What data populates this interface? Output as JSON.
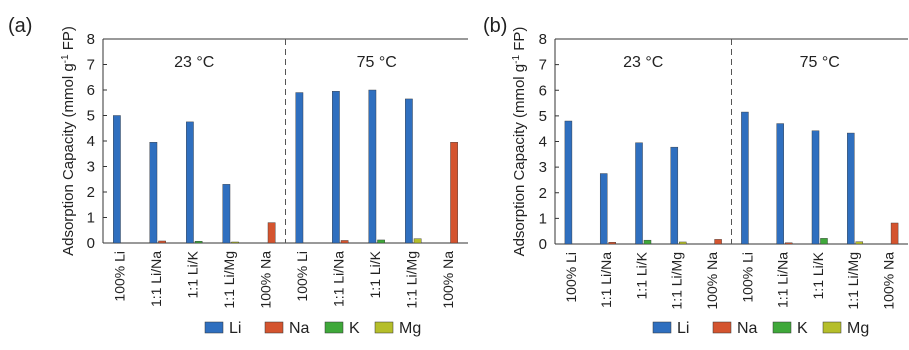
{
  "panel_labels": [
    "(a)",
    "(b)"
  ],
  "ylabel_parts": [
    "Adsorption Capacity (mmol g",
    "-1",
    " FP)"
  ],
  "y_ticks": [
    "0",
    "1",
    "2",
    "3",
    "4",
    "5",
    "6",
    "7",
    "8"
  ],
  "colors": {
    "Li": "#2f6fbf",
    "Na": "#d4542f",
    "K": "#3fa83a",
    "Mg": "#b5be2a",
    "divider": "#555555"
  },
  "chart_data": [
    {
      "type": "bar",
      "panel": "(a)",
      "ylim": [
        0,
        8
      ],
      "group_titles": [
        "23 °C",
        "75 °C"
      ],
      "categories": [
        "100% Li",
        "1:1 Li/Na",
        "1:1 Li/K",
        "1:1 Li/Mg",
        "100% Na",
        "100% Li",
        "1:1 Li/Na",
        "1:1 Li/K",
        "1:1 Li/Mg",
        "100% Na"
      ],
      "series": [
        {
          "name": "Li",
          "values": [
            5.0,
            3.95,
            4.75,
            2.3,
            0,
            5.9,
            5.95,
            6.0,
            5.65,
            0
          ]
        },
        {
          "name": "Na",
          "values": [
            0,
            0.08,
            0,
            0,
            0.8,
            0,
            0.1,
            0,
            0,
            3.95
          ]
        },
        {
          "name": "K",
          "values": [
            0,
            0,
            0.07,
            0,
            0,
            0,
            0,
            0.12,
            0,
            0
          ]
        },
        {
          "name": "Mg",
          "values": [
            0,
            0,
            0,
            0.04,
            0,
            0,
            0,
            0,
            0.17,
            0
          ]
        }
      ]
    },
    {
      "type": "bar",
      "panel": "(b)",
      "ylim": [
        0,
        8
      ],
      "group_titles": [
        "23 °C",
        "75 °C"
      ],
      "categories": [
        "100% Li",
        "1:1 Li/Na",
        "1:1 Li/K",
        "1:1 Li/Mg",
        "100% Na",
        "100% Li",
        "1:1 Li/Na",
        "1:1 Li/K",
        "1:1 Li/Mg",
        "100% Na"
      ],
      "series": [
        {
          "name": "Li",
          "values": [
            4.8,
            2.75,
            3.95,
            3.78,
            0,
            5.15,
            4.7,
            4.42,
            4.33,
            0
          ]
        },
        {
          "name": "Na",
          "values": [
            0,
            0.07,
            0,
            0,
            0.18,
            0,
            0.05,
            0,
            0,
            0.82
          ]
        },
        {
          "name": "K",
          "values": [
            0,
            0,
            0.15,
            0,
            0,
            0,
            0,
            0.22,
            0,
            0
          ]
        },
        {
          "name": "Mg",
          "values": [
            0,
            0,
            0,
            0.08,
            0,
            0,
            0,
            0,
            0.09,
            0
          ]
        }
      ]
    }
  ],
  "legends": [
    {
      "entries": [
        "Li",
        "Na",
        "K",
        "Mg"
      ]
    },
    {
      "entries": [
        "Li",
        "Na",
        "K",
        "Mg"
      ]
    }
  ]
}
